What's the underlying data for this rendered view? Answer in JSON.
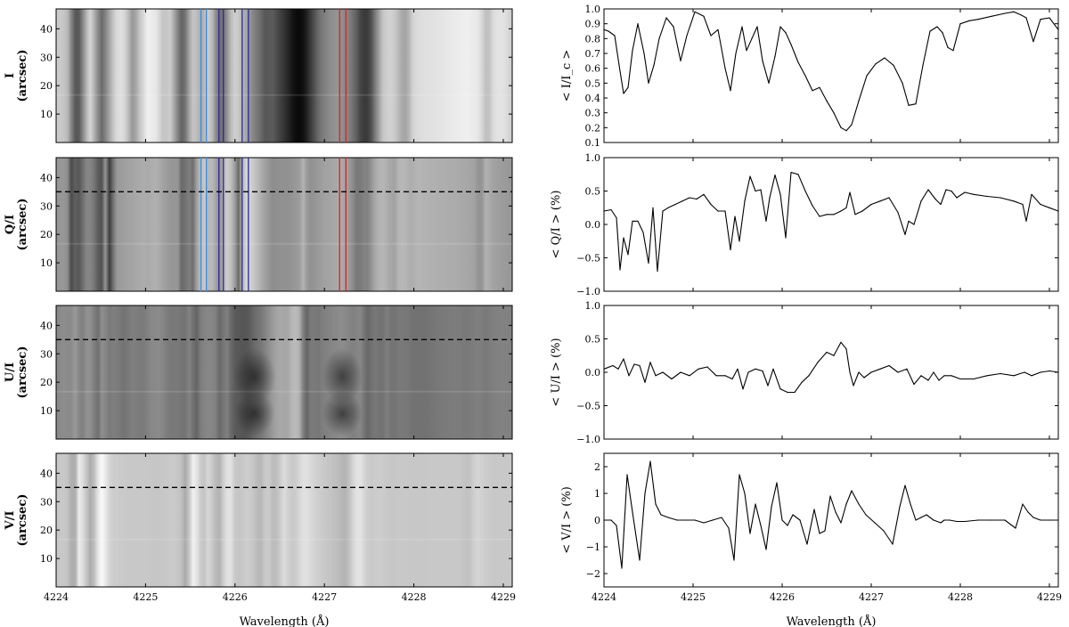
{
  "colors": {
    "line_red": "#e02020",
    "line_blue": "#2a2a9a",
    "line_light_blue": "#3a8fe0",
    "dashed": "#000000",
    "trace": "#000000"
  },
  "chart_data": [
    {
      "type": "heatmap",
      "panel": "I",
      "ylabel_line1": "I",
      "ylabel_line2": "(arcsec)",
      "xlim": [
        4224,
        4229.1
      ],
      "ylim": [
        0,
        47
      ],
      "yticks": [
        "10",
        "20",
        "30",
        "40"
      ],
      "contrast": "intensity",
      "vertical_markers": [
        {
          "x": 4225.62,
          "color": "light_blue"
        },
        {
          "x": 4225.68,
          "color": "light_blue"
        },
        {
          "x": 4225.82,
          "color": "blue"
        },
        {
          "x": 4225.87,
          "color": "blue"
        },
        {
          "x": 4226.08,
          "color": "blue"
        },
        {
          "x": 4226.15,
          "color": "blue"
        },
        {
          "x": 4227.17,
          "color": "red"
        },
        {
          "x": 4227.24,
          "color": "red"
        }
      ],
      "dashed_y": null
    },
    {
      "type": "heatmap",
      "panel": "Q/I",
      "ylabel_line1": "Q/I",
      "ylabel_line2": "(arcsec)",
      "xlim": [
        4224,
        4229.1
      ],
      "ylim": [
        0,
        47
      ],
      "yticks": [
        "10",
        "20",
        "30",
        "40"
      ],
      "contrast": "Q",
      "vertical_markers": [
        {
          "x": 4225.62,
          "color": "light_blue"
        },
        {
          "x": 4225.68,
          "color": "light_blue"
        },
        {
          "x": 4225.82,
          "color": "blue"
        },
        {
          "x": 4225.87,
          "color": "blue"
        },
        {
          "x": 4226.08,
          "color": "blue"
        },
        {
          "x": 4226.15,
          "color": "blue"
        },
        {
          "x": 4227.17,
          "color": "red"
        },
        {
          "x": 4227.24,
          "color": "red"
        }
      ],
      "dashed_y": 35
    },
    {
      "type": "heatmap",
      "panel": "U/I",
      "ylabel_line1": "U/I",
      "ylabel_line2": "(arcsec)",
      "xlim": [
        4224,
        4229.1
      ],
      "ylim": [
        0,
        47
      ],
      "yticks": [
        "10",
        "20",
        "30",
        "40"
      ],
      "contrast": "U",
      "vertical_markers": [],
      "dashed_y": 35
    },
    {
      "type": "heatmap",
      "panel": "V/I",
      "ylabel_line1": "V/I",
      "ylabel_line2": "(arcsec)",
      "xlim": [
        4224,
        4229.1
      ],
      "ylim": [
        0,
        47
      ],
      "yticks": [
        "10",
        "20",
        "30",
        "40"
      ],
      "contrast": "V",
      "vertical_markers": [],
      "dashed_y": 35,
      "xlabel": "Wavelength (Å)",
      "xticks": [
        "4224",
        "4225",
        "4226",
        "4227",
        "4228",
        "4229"
      ]
    },
    {
      "type": "line",
      "panel": "I_profile",
      "ylabel": "< I/I_c >",
      "xlim": [
        4224,
        4229.1
      ],
      "ylim": [
        0.1,
        1.0
      ],
      "yticks": [
        "0.1",
        "0.2",
        "0.3",
        "0.4",
        "0.5",
        "0.6",
        "0.7",
        "0.8",
        "0.9",
        "1.0"
      ],
      "x": [
        4224.0,
        4224.05,
        4224.12,
        4224.17,
        4224.22,
        4224.27,
        4224.32,
        4224.38,
        4224.45,
        4224.5,
        4224.56,
        4224.62,
        4224.7,
        4224.78,
        4224.86,
        4224.93,
        4225.02,
        4225.12,
        4225.2,
        4225.28,
        4225.36,
        4225.42,
        4225.48,
        4225.55,
        4225.6,
        4225.66,
        4225.72,
        4225.78,
        4225.85,
        4225.92,
        4225.98,
        4226.04,
        4226.1,
        4226.18,
        4226.26,
        4226.34,
        4226.42,
        4226.5,
        4226.58,
        4226.66,
        4226.72,
        4226.78,
        4226.86,
        4226.95,
        4227.05,
        4227.15,
        4227.25,
        4227.35,
        4227.42,
        4227.5,
        4227.58,
        4227.66,
        4227.74,
        4227.8,
        4227.86,
        4227.92,
        4228.0,
        4228.1,
        4228.2,
        4228.35,
        4228.5,
        4228.6,
        4228.68,
        4228.74,
        4228.82,
        4228.9,
        4229.0,
        4229.1
      ],
      "y": [
        0.86,
        0.85,
        0.82,
        0.62,
        0.43,
        0.47,
        0.72,
        0.9,
        0.7,
        0.5,
        0.62,
        0.8,
        0.94,
        0.88,
        0.65,
        0.82,
        0.98,
        0.95,
        0.82,
        0.86,
        0.6,
        0.45,
        0.7,
        0.88,
        0.72,
        0.8,
        0.88,
        0.65,
        0.5,
        0.68,
        0.88,
        0.84,
        0.76,
        0.64,
        0.55,
        0.45,
        0.47,
        0.38,
        0.3,
        0.2,
        0.18,
        0.22,
        0.38,
        0.55,
        0.63,
        0.67,
        0.62,
        0.5,
        0.35,
        0.36,
        0.62,
        0.85,
        0.88,
        0.84,
        0.74,
        0.72,
        0.9,
        0.92,
        0.93,
        0.95,
        0.97,
        0.98,
        0.96,
        0.94,
        0.78,
        0.93,
        0.94,
        0.86
      ]
    },
    {
      "type": "line",
      "panel": "Q_profile",
      "ylabel": "< Q/I > (%)",
      "xlim": [
        4224,
        4229.1
      ],
      "ylim": [
        -1.0,
        1.0
      ],
      "yticks": [
        "−1.0",
        "−0.5",
        "0.0",
        "0.5",
        "1.0"
      ],
      "x": [
        4224.0,
        4224.08,
        4224.14,
        4224.18,
        4224.22,
        4224.27,
        4224.32,
        4224.38,
        4224.44,
        4224.5,
        4224.55,
        4224.6,
        4224.66,
        4224.72,
        4224.8,
        4224.88,
        4224.96,
        4225.04,
        4225.12,
        4225.2,
        4225.28,
        4225.36,
        4225.42,
        4225.47,
        4225.52,
        4225.58,
        4225.64,
        4225.7,
        4225.76,
        4225.82,
        4225.86,
        4225.92,
        4225.98,
        4226.04,
        4226.1,
        4226.18,
        4226.26,
        4226.34,
        4226.42,
        4226.5,
        4226.58,
        4226.66,
        4226.72,
        4226.76,
        4226.82,
        4226.9,
        4227.0,
        4227.1,
        4227.2,
        4227.3,
        4227.38,
        4227.42,
        4227.48,
        4227.56,
        4227.64,
        4227.72,
        4227.78,
        4227.84,
        4227.9,
        4227.96,
        4228.05,
        4228.15,
        4228.3,
        4228.45,
        4228.6,
        4228.7,
        4228.74,
        4228.8,
        4228.9,
        4229.0,
        4229.1
      ],
      "y": [
        0.2,
        0.22,
        0.1,
        -0.68,
        -0.2,
        -0.45,
        0.05,
        0.05,
        -0.12,
        -0.58,
        0.25,
        -0.7,
        0.2,
        0.25,
        0.3,
        0.35,
        0.4,
        0.38,
        0.45,
        0.3,
        0.2,
        0.2,
        -0.38,
        0.12,
        -0.25,
        0.35,
        0.72,
        0.5,
        0.52,
        0.05,
        0.4,
        0.74,
        0.45,
        -0.2,
        0.78,
        0.75,
        0.5,
        0.28,
        0.12,
        0.15,
        0.15,
        0.2,
        0.25,
        0.48,
        0.15,
        0.2,
        0.3,
        0.35,
        0.4,
        0.18,
        -0.15,
        0.05,
        0.0,
        0.35,
        0.52,
        0.38,
        0.3,
        0.52,
        0.5,
        0.4,
        0.48,
        0.45,
        0.42,
        0.4,
        0.35,
        0.3,
        0.05,
        0.45,
        0.3,
        0.25,
        0.2
      ]
    },
    {
      "type": "line",
      "panel": "U_profile",
      "ylabel": "< U/I > (%)",
      "xlim": [
        4224,
        4229.1
      ],
      "ylim": [
        -1.0,
        1.0
      ],
      "yticks": [
        "−1.0",
        "−0.5",
        "0.0",
        "0.5",
        "1.0"
      ],
      "x": [
        4224.0,
        4224.1,
        4224.16,
        4224.22,
        4224.28,
        4224.34,
        4224.4,
        4224.46,
        4224.52,
        4224.58,
        4224.66,
        4224.76,
        4224.86,
        4224.96,
        4225.06,
        4225.16,
        4225.26,
        4225.36,
        4225.44,
        4225.5,
        4225.56,
        4225.62,
        4225.7,
        4225.78,
        4225.84,
        4225.9,
        4225.98,
        4226.06,
        4226.14,
        4226.22,
        4226.3,
        4226.4,
        4226.5,
        4226.58,
        4226.66,
        4226.72,
        4226.76,
        4226.8,
        4226.86,
        4226.92,
        4227.0,
        4227.1,
        4227.2,
        4227.3,
        4227.4,
        4227.48,
        4227.56,
        4227.64,
        4227.7,
        4227.76,
        4227.82,
        4227.9,
        4228.0,
        4228.15,
        4228.3,
        4228.45,
        4228.6,
        4228.72,
        4228.8,
        4228.9,
        4229.0,
        4229.1
      ],
      "y": [
        0.05,
        0.1,
        0.05,
        0.2,
        -0.05,
        0.12,
        0.1,
        -0.15,
        0.15,
        -0.05,
        0.0,
        -0.1,
        0.0,
        -0.05,
        0.05,
        0.08,
        -0.05,
        -0.05,
        -0.1,
        0.05,
        -0.25,
        0.0,
        0.05,
        0.02,
        -0.2,
        0.05,
        -0.25,
        -0.3,
        -0.3,
        -0.15,
        -0.05,
        0.15,
        0.3,
        0.25,
        0.45,
        0.35,
        0.0,
        -0.2,
        0.0,
        -0.08,
        0.0,
        0.05,
        0.1,
        0.0,
        0.05,
        -0.18,
        -0.05,
        -0.12,
        0.0,
        -0.12,
        -0.05,
        -0.05,
        -0.1,
        -0.1,
        -0.05,
        -0.02,
        -0.05,
        0.0,
        -0.05,
        0.0,
        0.02,
        0.0
      ]
    },
    {
      "type": "line",
      "panel": "V_profile",
      "ylabel": "< V/I > (%)",
      "xlim": [
        4224,
        4229.1
      ],
      "ylim": [
        -2.5,
        2.5
      ],
      "yticks": [
        "−2",
        "−1",
        "0",
        "1",
        "2"
      ],
      "xlabel": "Wavelength (Å)",
      "xticks": [
        "4224",
        "4225",
        "4226",
        "4227",
        "4228",
        "4229"
      ],
      "x": [
        4224.0,
        4224.08,
        4224.14,
        4224.2,
        4224.26,
        4224.32,
        4224.4,
        4224.46,
        4224.52,
        4224.58,
        4224.64,
        4224.72,
        4224.82,
        4224.92,
        4225.02,
        4225.12,
        4225.22,
        4225.32,
        4225.4,
        4225.46,
        4225.52,
        4225.58,
        4225.64,
        4225.7,
        4225.76,
        4225.82,
        4225.88,
        4225.94,
        4226.0,
        4226.06,
        4226.12,
        4226.2,
        4226.28,
        4226.36,
        4226.42,
        4226.48,
        4226.54,
        4226.6,
        4226.66,
        4226.72,
        4226.78,
        4226.86,
        4226.94,
        4227.04,
        4227.14,
        4227.24,
        4227.32,
        4227.38,
        4227.44,
        4227.5,
        4227.56,
        4227.62,
        4227.7,
        4227.78,
        4227.82,
        4227.88,
        4227.96,
        4228.05,
        4228.2,
        4228.35,
        4228.5,
        4228.62,
        4228.7,
        4228.76,
        4228.82,
        4228.9,
        4229.0,
        4229.1
      ],
      "y": [
        0.0,
        0.0,
        -0.2,
        -1.8,
        1.7,
        0.3,
        -1.5,
        1.0,
        2.2,
        0.6,
        0.2,
        0.1,
        0.0,
        0.0,
        0.0,
        -0.1,
        0.0,
        0.1,
        -0.3,
        -1.5,
        1.7,
        1.0,
        -0.5,
        0.6,
        -0.2,
        -1.1,
        0.5,
        1.4,
        0.0,
        -0.2,
        0.2,
        0.0,
        -0.9,
        0.4,
        -0.5,
        -0.4,
        0.9,
        0.3,
        -0.1,
        0.6,
        1.1,
        0.6,
        0.2,
        -0.1,
        -0.4,
        -0.9,
        0.5,
        1.3,
        0.6,
        0.0,
        0.1,
        0.2,
        0.0,
        -0.1,
        0.0,
        0.0,
        -0.05,
        -0.05,
        0.0,
        0.0,
        0.0,
        -0.3,
        0.6,
        0.3,
        0.1,
        0.0,
        0.0,
        0.0
      ]
    }
  ]
}
